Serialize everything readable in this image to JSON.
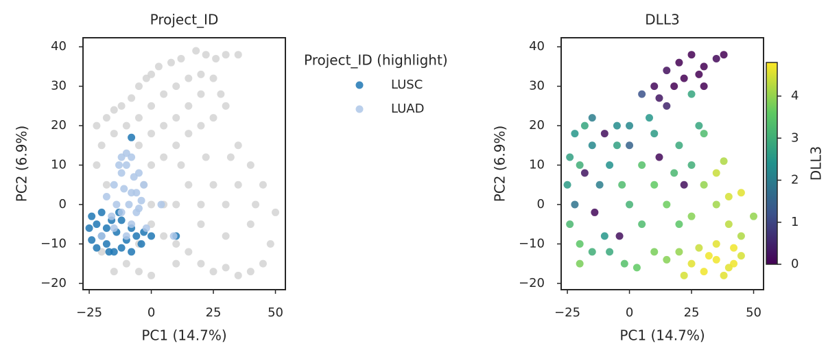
{
  "chart_data": [
    {
      "type": "scatter",
      "title": "Project_ID",
      "xlabel": "PC1 (14.7%)",
      "ylabel": "PC2 (6.9%)",
      "xlim": [
        -27.5,
        54
      ],
      "ylim": [
        -21.6,
        42.3
      ],
      "xticks": [
        {
          "value": -25,
          "label": "−25"
        },
        0,
        25,
        50
      ],
      "yticks": [
        {
          "value": -20,
          "label": "−20"
        },
        {
          "value": -10,
          "label": "−10"
        },
        0,
        10,
        20,
        30,
        40
      ],
      "legend_title": "Project_ID (highlight)",
      "series": [
        {
          "color": "#d3d3d3",
          "x": [
            -22,
            -18,
            -15,
            -12,
            -8,
            -5,
            -2,
            0,
            3,
            8,
            12,
            18,
            22,
            26,
            30,
            35,
            -20,
            -15,
            -10,
            -5,
            0,
            5,
            10,
            15,
            20,
            25,
            -22,
            -18,
            -5,
            0,
            5,
            10,
            15,
            20,
            28,
            0,
            5,
            10,
            15,
            20,
            25,
            30,
            35,
            40,
            45,
            50,
            48,
            45,
            40,
            35,
            30,
            25,
            20,
            15,
            10,
            5,
            0,
            -5,
            -10,
            -15,
            -20,
            30,
            35,
            25,
            20,
            15,
            10,
            40,
            30,
            20,
            5,
            0,
            -3,
            12,
            22,
            32,
            42,
            -5,
            0,
            10
          ],
          "y": [
            20,
            22,
            24,
            25,
            27,
            30,
            32,
            33,
            35,
            36,
            37,
            39,
            38,
            37,
            38,
            38,
            15,
            18,
            20,
            22,
            25,
            28,
            30,
            32,
            33,
            32,
            10,
            5,
            15,
            18,
            20,
            22,
            25,
            28,
            28,
            10,
            12,
            15,
            18,
            20,
            22,
            25,
            15,
            10,
            5,
            -2,
            -10,
            -15,
            -17,
            -18,
            -16,
            -17,
            -15,
            -12,
            -10,
            -8,
            -5,
            -10,
            -15,
            -17,
            -12,
            0,
            5,
            5,
            0,
            5,
            0,
            -5,
            -8,
            -5,
            0,
            0,
            5,
            10,
            12,
            12,
            0,
            -17,
            -18,
            -15
          ]
        },
        {
          "name": "LUSC",
          "color": "#1f77b4",
          "x": [
            -24,
            -22,
            -20,
            -24,
            -18,
            -15,
            -12,
            -10,
            -8,
            -6,
            -4,
            -20,
            -16,
            -14,
            -22,
            -18,
            -12,
            -8,
            -3,
            -8,
            10,
            0,
            -25,
            -17,
            -13
          ],
          "y": [
            -3,
            -5,
            -8,
            -9,
            -10,
            -12,
            -11,
            -9,
            -6,
            -8,
            -10,
            -2,
            -4,
            -7,
            -11,
            -6,
            -4,
            -12,
            -7,
            17,
            -8,
            -8,
            -6,
            -12,
            -2
          ]
        },
        {
          "name": "LUAD",
          "color": "#aec7e8",
          "x": [
            -18,
            -15,
            -12,
            -10,
            -8,
            -10,
            -5,
            -3,
            -6,
            -9,
            -12,
            -14,
            -16,
            -8,
            -5,
            -7,
            -11,
            -13,
            -4,
            -2,
            -20,
            -10,
            -6,
            -15,
            4,
            9,
            -8,
            -12
          ],
          "y": [
            2,
            5,
            8,
            10,
            12,
            13,
            8,
            5,
            3,
            0,
            -2,
            0,
            -3,
            -5,
            -1,
            7,
            4,
            10,
            1,
            -6,
            -8,
            -8,
            -2,
            -6,
            0,
            -8,
            3,
            12
          ]
        }
      ]
    },
    {
      "type": "colorscatter",
      "title": "DLL3",
      "xlabel": "PC1 (14.7%)",
      "ylabel": "PC2 (6.9%)",
      "xlim": [
        -27.5,
        54
      ],
      "ylim": [
        -21.6,
        42.3
      ],
      "xticks": [
        {
          "value": -25,
          "label": "−25"
        },
        0,
        25,
        50
      ],
      "yticks": [
        {
          "value": -20,
          "label": "−20"
        },
        {
          "value": -10,
          "label": "−10"
        },
        0,
        10,
        20,
        30,
        40
      ],
      "colormap": "viridis",
      "clim": [
        0,
        4.8
      ],
      "cticks": [
        0,
        1,
        2,
        3,
        4
      ],
      "colorbar_label": "DLL3",
      "x": [
        20,
        25,
        30,
        15,
        10,
        22,
        28,
        35,
        18,
        12,
        5,
        8,
        0,
        15,
        25,
        30,
        38,
        -22,
        -18,
        -15,
        -20,
        -25,
        -22,
        -24,
        -20,
        -15,
        -10,
        -12,
        -8,
        -5,
        -10,
        -5,
        0,
        -3,
        -18,
        -14,
        -8,
        -2,
        3,
        -15,
        -24,
        -20,
        5,
        10,
        15,
        20,
        5,
        10,
        15,
        18,
        25,
        20,
        10,
        28,
        30,
        35,
        40,
        45,
        50,
        25,
        0,
        -4,
        12,
        22,
        30,
        35,
        40,
        45,
        25,
        30,
        35,
        40,
        45,
        28,
        35,
        42,
        22,
        38,
        32,
        20,
        42,
        38
      ],
      "y": [
        36,
        38,
        35,
        34,
        30,
        32,
        33,
        37,
        30,
        27,
        28,
        22,
        20,
        25,
        28,
        30,
        38,
        18,
        20,
        15,
        10,
        5,
        0,
        -5,
        -10,
        -12,
        -8,
        5,
        10,
        15,
        18,
        20,
        15,
        5,
        8,
        -2,
        -12,
        -15,
        -16,
        22,
        12,
        -15,
        10,
        5,
        0,
        -5,
        -5,
        -12,
        -14,
        8,
        10,
        15,
        18,
        20,
        5,
        0,
        -5,
        -8,
        -3,
        -3,
        0,
        -8,
        12,
        5,
        18,
        8,
        2,
        3,
        -15,
        -17,
        -14,
        -16,
        -13,
        -11,
        -10,
        -11,
        -18,
        -18,
        -13,
        -12,
        -15,
        11
      ],
      "color_values": [
        0,
        0,
        0,
        0.2,
        0.1,
        0,
        0,
        0.1,
        0,
        0.3,
        1.2,
        2.5,
        2.2,
        0.5,
        2.8,
        0,
        0,
        2.5,
        2.8,
        2.2,
        3.0,
        2.6,
        1.8,
        3.2,
        3.5,
        3.0,
        2.5,
        2.0,
        2.4,
        2.7,
        0.2,
        2.3,
        1.5,
        3.3,
        0.3,
        0.1,
        2.9,
        3.4,
        3.6,
        2.0,
        2.7,
        3.8,
        3.4,
        3.6,
        3.7,
        3.5,
        3.3,
        3.8,
        3.9,
        3.2,
        3.0,
        2.9,
        2.6,
        2.8,
        4.0,
        4.1,
        4.3,
        4.2,
        4.0,
        3.9,
        3.1,
        0.2,
        0.1,
        0.2,
        3.3,
        4.4,
        4.5,
        4.6,
        4.6,
        4.7,
        4.7,
        4.6,
        4.5,
        4.4,
        4.6,
        4.7,
        4.5,
        4.6,
        4.7,
        4.0,
        4.7,
        4.2
      ]
    }
  ]
}
